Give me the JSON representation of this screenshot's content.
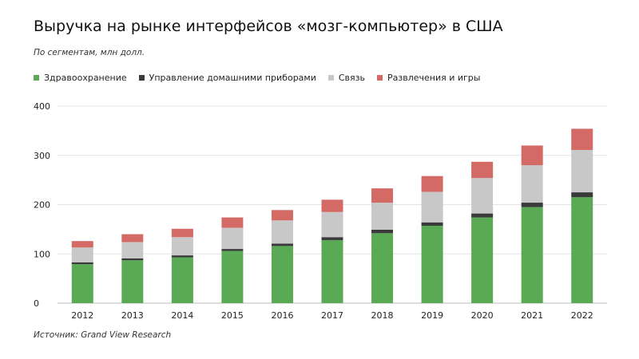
{
  "title": "Выручка на рынке интерфейсов «мозг-компьютер» в США",
  "subtitle": "По сегментам, млн долл.",
  "source": "Источник: Grand View Research",
  "chart_data": {
    "type": "bar",
    "stacked": true,
    "categories": [
      "2012",
      "2013",
      "2014",
      "2015",
      "2016",
      "2017",
      "2018",
      "2019",
      "2020",
      "2021",
      "2022"
    ],
    "series": [
      {
        "name": "Здравоохранение",
        "color": "#5aaa55",
        "values": [
          79,
          87,
          93,
          106,
          116,
          128,
          142,
          157,
          174,
          195,
          215
        ]
      },
      {
        "name": "Управление домашними приборами",
        "color": "#3a3a3a",
        "values": [
          4,
          4,
          4,
          4,
          5,
          6,
          7,
          7,
          8,
          9,
          10
        ]
      },
      {
        "name": "Связь",
        "color": "#c8c8c8",
        "values": [
          30,
          33,
          37,
          43,
          47,
          51,
          55,
          62,
          72,
          76,
          86
        ]
      },
      {
        "name": "Развлечения и игры",
        "color": "#d46a66",
        "values": [
          13,
          16,
          17,
          21,
          21,
          25,
          29,
          32,
          33,
          40,
          43
        ]
      }
    ],
    "ylim": [
      0,
      400
    ],
    "yticks": [
      0,
      100,
      200,
      300,
      400
    ],
    "grid": true,
    "legend": "top-left"
  }
}
